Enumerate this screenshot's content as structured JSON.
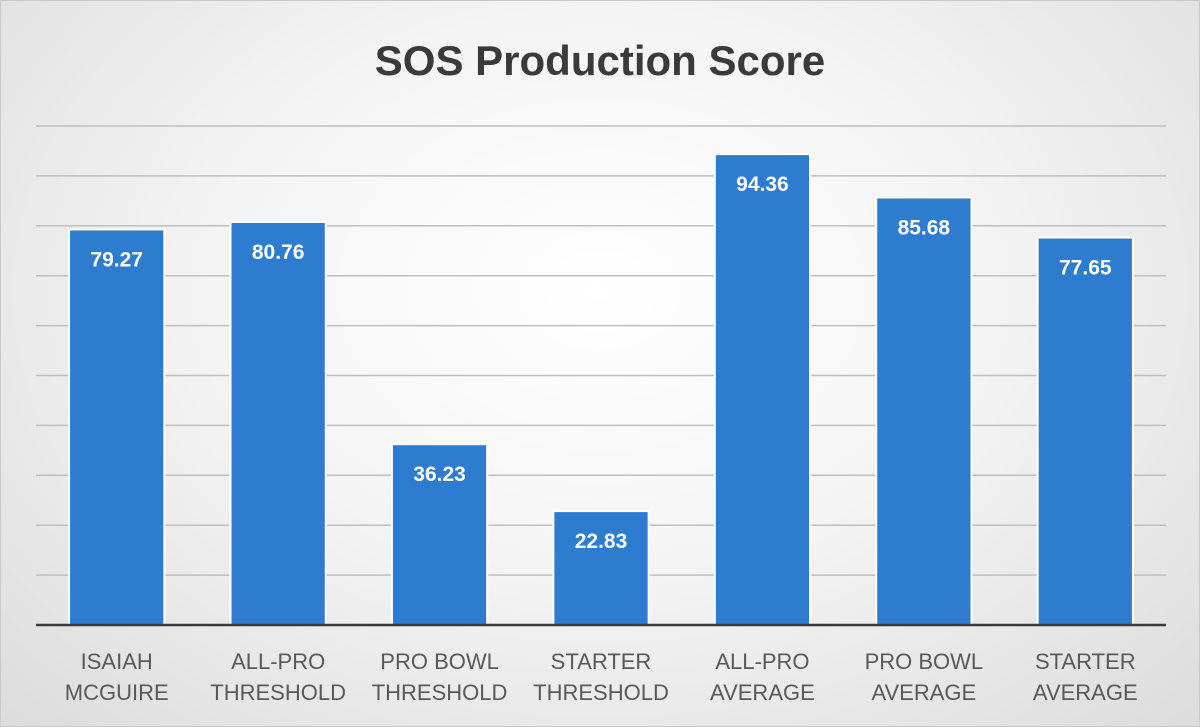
{
  "chart_data": {
    "type": "bar",
    "title": "SOS Production Score",
    "categories": [
      [
        "ISAIAH",
        "MCGUIRE"
      ],
      [
        "ALL-PRO",
        "THRESHOLD"
      ],
      [
        "PRO BOWL",
        "THRESHOLD"
      ],
      [
        "STARTER",
        "THRESHOLD"
      ],
      [
        "ALL-PRO",
        "AVERAGE"
      ],
      [
        "PRO BOWL",
        "AVERAGE"
      ],
      [
        "STARTER",
        "AVERAGE"
      ]
    ],
    "values": [
      79.27,
      80.76,
      36.23,
      22.83,
      94.36,
      85.68,
      77.65
    ],
    "value_labels": [
      "79.27",
      "80.76",
      "36.23",
      "22.83",
      "94.36",
      "85.68",
      "77.65"
    ],
    "ylim": [
      0,
      100
    ],
    "y_gridline_step": 10,
    "y_axis_labels_shown": false,
    "grid": true,
    "legend": "none",
    "bar_color": "#2e7ccf",
    "bar_edge_color": "#ffffff",
    "gridline_color": "#bfbfbf",
    "axis_color": "#3a3a3a"
  }
}
